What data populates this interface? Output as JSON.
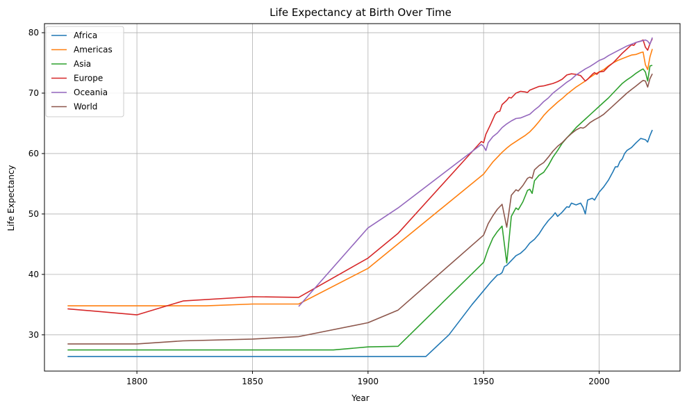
{
  "chart_data": {
    "type": "line",
    "title": "Life Expectancy at Birth Over Time",
    "xlabel": "Year",
    "ylabel": "Life Expectancy",
    "xlim": [
      1760,
      2035
    ],
    "ylim": [
      24,
      81.5
    ],
    "xticks": [
      1800,
      1850,
      1900,
      1950,
      2000
    ],
    "yticks": [
      30,
      40,
      50,
      60,
      70,
      80
    ],
    "grid": true,
    "legend_position": "top-left",
    "series": [
      {
        "name": "Africa",
        "color": "#1f77b4",
        "points": [
          [
            1770,
            26.4
          ],
          [
            1800,
            26.4
          ],
          [
            1850,
            26.4
          ],
          [
            1900,
            26.4
          ],
          [
            1925,
            26.4
          ],
          [
            1935,
            30.0
          ],
          [
            1945,
            35.0
          ],
          [
            1950,
            37.3
          ],
          [
            1953,
            38.7
          ],
          [
            1956,
            39.9
          ],
          [
            1957,
            40.0
          ],
          [
            1958,
            40.3
          ],
          [
            1959,
            41.3
          ],
          [
            1960,
            41.5
          ],
          [
            1962,
            42.3
          ],
          [
            1964,
            43.1
          ],
          [
            1966,
            43.5
          ],
          [
            1968,
            44.2
          ],
          [
            1970,
            45.2
          ],
          [
            1972,
            45.8
          ],
          [
            1974,
            46.7
          ],
          [
            1976,
            47.9
          ],
          [
            1978,
            48.9
          ],
          [
            1980,
            49.7
          ],
          [
            1981,
            50.2
          ],
          [
            1982,
            49.6
          ],
          [
            1984,
            50.3
          ],
          [
            1986,
            51.2
          ],
          [
            1987,
            51.1
          ],
          [
            1988,
            51.8
          ],
          [
            1990,
            51.5
          ],
          [
            1992,
            51.8
          ],
          [
            1993,
            51.1
          ],
          [
            1994,
            50.0
          ],
          [
            1995,
            52.3
          ],
          [
            1997,
            52.6
          ],
          [
            1998,
            52.3
          ],
          [
            2000,
            53.6
          ],
          [
            2002,
            54.5
          ],
          [
            2004,
            55.6
          ],
          [
            2006,
            57.0
          ],
          [
            2007,
            57.8
          ],
          [
            2008,
            57.8
          ],
          [
            2009,
            58.7
          ],
          [
            2010,
            59.1
          ],
          [
            2011,
            60.0
          ],
          [
            2012,
            60.5
          ],
          [
            2014,
            61.0
          ],
          [
            2016,
            61.8
          ],
          [
            2018,
            62.5
          ],
          [
            2019,
            62.4
          ],
          [
            2020,
            62.3
          ],
          [
            2021,
            61.9
          ],
          [
            2022,
            63.0
          ],
          [
            2023,
            63.9
          ]
        ]
      },
      {
        "name": "Americas",
        "color": "#ff7f0e",
        "points": [
          [
            1770,
            34.8
          ],
          [
            1800,
            34.8
          ],
          [
            1830,
            34.8
          ],
          [
            1850,
            35.1
          ],
          [
            1870,
            35.1
          ],
          [
            1900,
            41.0
          ],
          [
            1950,
            56.6
          ],
          [
            1952,
            57.6
          ],
          [
            1954,
            58.6
          ],
          [
            1956,
            59.4
          ],
          [
            1958,
            60.2
          ],
          [
            1960,
            60.9
          ],
          [
            1962,
            61.5
          ],
          [
            1964,
            62.0
          ],
          [
            1966,
            62.5
          ],
          [
            1968,
            63.0
          ],
          [
            1970,
            63.6
          ],
          [
            1972,
            64.4
          ],
          [
            1974,
            65.3
          ],
          [
            1976,
            66.3
          ],
          [
            1978,
            67.1
          ],
          [
            1980,
            67.8
          ],
          [
            1982,
            68.5
          ],
          [
            1984,
            69.1
          ],
          [
            1986,
            69.8
          ],
          [
            1988,
            70.4
          ],
          [
            1990,
            71.0
          ],
          [
            1992,
            71.5
          ],
          [
            1994,
            72.0
          ],
          [
            1996,
            72.6
          ],
          [
            1998,
            73.1
          ],
          [
            2000,
            73.5
          ],
          [
            2002,
            73.9
          ],
          [
            2004,
            74.5
          ],
          [
            2006,
            75.0
          ],
          [
            2008,
            75.4
          ],
          [
            2010,
            75.7
          ],
          [
            2012,
            76.0
          ],
          [
            2014,
            76.3
          ],
          [
            2016,
            76.4
          ],
          [
            2018,
            76.7
          ],
          [
            2019,
            76.8
          ],
          [
            2020,
            74.7
          ],
          [
            2021,
            73.9
          ],
          [
            2022,
            76.0
          ],
          [
            2023,
            77.3
          ]
        ]
      },
      {
        "name": "Asia",
        "color": "#2ca02c",
        "points": [
          [
            1770,
            27.5
          ],
          [
            1800,
            27.5
          ],
          [
            1850,
            27.5
          ],
          [
            1885,
            27.5
          ],
          [
            1900,
            28.0
          ],
          [
            1913,
            28.1
          ],
          [
            1950,
            42.0
          ],
          [
            1952,
            44.2
          ],
          [
            1954,
            46.0
          ],
          [
            1956,
            47.1
          ],
          [
            1958,
            48.0
          ],
          [
            1960,
            41.9
          ],
          [
            1962,
            49.6
          ],
          [
            1964,
            51.0
          ],
          [
            1965,
            50.7
          ],
          [
            1967,
            52.0
          ],
          [
            1969,
            53.9
          ],
          [
            1970,
            54.1
          ],
          [
            1971,
            53.4
          ],
          [
            1972,
            55.5
          ],
          [
            1974,
            56.4
          ],
          [
            1976,
            56.9
          ],
          [
            1978,
            58.0
          ],
          [
            1980,
            59.4
          ],
          [
            1982,
            60.5
          ],
          [
            1984,
            61.7
          ],
          [
            1986,
            62.6
          ],
          [
            1988,
            63.4
          ],
          [
            1990,
            64.3
          ],
          [
            1992,
            65.0
          ],
          [
            1994,
            65.7
          ],
          [
            1996,
            66.4
          ],
          [
            1998,
            67.1
          ],
          [
            2000,
            67.8
          ],
          [
            2002,
            68.5
          ],
          [
            2004,
            69.2
          ],
          [
            2006,
            70.0
          ],
          [
            2008,
            70.8
          ],
          [
            2010,
            71.6
          ],
          [
            2012,
            72.2
          ],
          [
            2014,
            72.7
          ],
          [
            2016,
            73.3
          ],
          [
            2018,
            73.8
          ],
          [
            2019,
            74.0
          ],
          [
            2020,
            73.5
          ],
          [
            2021,
            72.0
          ],
          [
            2022,
            74.5
          ],
          [
            2023,
            74.6
          ]
        ]
      },
      {
        "name": "Europe",
        "color": "#d62728",
        "points": [
          [
            1770,
            34.3
          ],
          [
            1800,
            33.3
          ],
          [
            1820,
            35.6
          ],
          [
            1850,
            36.3
          ],
          [
            1870,
            36.2
          ],
          [
            1900,
            42.7
          ],
          [
            1913,
            46.8
          ],
          [
            1949,
            62.0
          ],
          [
            1950,
            61.8
          ],
          [
            1951,
            63.2
          ],
          [
            1953,
            64.8
          ],
          [
            1955,
            66.5
          ],
          [
            1956,
            66.9
          ],
          [
            1957,
            67.0
          ],
          [
            1958,
            68.1
          ],
          [
            1960,
            68.8
          ],
          [
            1961,
            69.3
          ],
          [
            1962,
            69.2
          ],
          [
            1964,
            70.0
          ],
          [
            1966,
            70.3
          ],
          [
            1968,
            70.2
          ],
          [
            1969,
            70.1
          ],
          [
            1970,
            70.5
          ],
          [
            1972,
            70.8
          ],
          [
            1974,
            71.1
          ],
          [
            1976,
            71.2
          ],
          [
            1978,
            71.4
          ],
          [
            1980,
            71.6
          ],
          [
            1982,
            71.9
          ],
          [
            1984,
            72.3
          ],
          [
            1986,
            73.0
          ],
          [
            1988,
            73.2
          ],
          [
            1990,
            73.1
          ],
          [
            1992,
            72.9
          ],
          [
            1994,
            72.0
          ],
          [
            1995,
            72.3
          ],
          [
            1997,
            73.1
          ],
          [
            1998,
            73.4
          ],
          [
            1999,
            73.1
          ],
          [
            2000,
            73.5
          ],
          [
            2002,
            73.6
          ],
          [
            2004,
            74.4
          ],
          [
            2006,
            75.0
          ],
          [
            2008,
            75.8
          ],
          [
            2010,
            76.6
          ],
          [
            2012,
            77.3
          ],
          [
            2014,
            78.0
          ],
          [
            2015,
            77.9
          ],
          [
            2016,
            78.4
          ],
          [
            2018,
            78.6
          ],
          [
            2019,
            78.8
          ],
          [
            2020,
            77.6
          ],
          [
            2021,
            77.1
          ],
          [
            2022,
            78.2
          ],
          [
            2023,
            79.0
          ]
        ]
      },
      {
        "name": "Oceania",
        "color": "#9467bd",
        "points": [
          [
            1870,
            34.7
          ],
          [
            1900,
            47.7
          ],
          [
            1913,
            51.0
          ],
          [
            1949,
            61.5
          ],
          [
            1950,
            61.2
          ],
          [
            1951,
            60.5
          ],
          [
            1952,
            61.8
          ],
          [
            1954,
            62.8
          ],
          [
            1956,
            63.4
          ],
          [
            1958,
            64.3
          ],
          [
            1960,
            64.9
          ],
          [
            1962,
            65.4
          ],
          [
            1964,
            65.8
          ],
          [
            1966,
            65.9
          ],
          [
            1968,
            66.2
          ],
          [
            1970,
            66.5
          ],
          [
            1972,
            67.2
          ],
          [
            1974,
            67.8
          ],
          [
            1976,
            68.6
          ],
          [
            1978,
            69.2
          ],
          [
            1980,
            70.0
          ],
          [
            1982,
            70.6
          ],
          [
            1984,
            71.2
          ],
          [
            1986,
            71.8
          ],
          [
            1988,
            72.3
          ],
          [
            1990,
            73.0
          ],
          [
            1992,
            73.5
          ],
          [
            1994,
            74.0
          ],
          [
            1996,
            74.4
          ],
          [
            1998,
            74.9
          ],
          [
            2000,
            75.4
          ],
          [
            2002,
            75.7
          ],
          [
            2004,
            76.2
          ],
          [
            2006,
            76.6
          ],
          [
            2008,
            77.0
          ],
          [
            2010,
            77.4
          ],
          [
            2012,
            77.8
          ],
          [
            2014,
            78.1
          ],
          [
            2016,
            78.4
          ],
          [
            2018,
            78.6
          ],
          [
            2019,
            78.7
          ],
          [
            2020,
            78.8
          ],
          [
            2021,
            78.6
          ],
          [
            2022,
            78.1
          ],
          [
            2023,
            79.2
          ]
        ]
      },
      {
        "name": "World",
        "color": "#8c564b",
        "points": [
          [
            1770,
            28.5
          ],
          [
            1800,
            28.5
          ],
          [
            1820,
            29.0
          ],
          [
            1850,
            29.3
          ],
          [
            1870,
            29.7
          ],
          [
            1900,
            32.0
          ],
          [
            1913,
            34.1
          ],
          [
            1950,
            46.5
          ],
          [
            1952,
            48.4
          ],
          [
            1954,
            49.7
          ],
          [
            1956,
            50.8
          ],
          [
            1958,
            51.6
          ],
          [
            1960,
            47.8
          ],
          [
            1961,
            50.4
          ],
          [
            1962,
            53.1
          ],
          [
            1964,
            54.0
          ],
          [
            1965,
            53.8
          ],
          [
            1967,
            54.7
          ],
          [
            1969,
            55.9
          ],
          [
            1970,
            56.1
          ],
          [
            1971,
            55.9
          ],
          [
            1972,
            57.3
          ],
          [
            1974,
            58.0
          ],
          [
            1976,
            58.5
          ],
          [
            1978,
            59.4
          ],
          [
            1980,
            60.4
          ],
          [
            1982,
            61.2
          ],
          [
            1984,
            61.8
          ],
          [
            1986,
            62.6
          ],
          [
            1988,
            63.3
          ],
          [
            1990,
            63.9
          ],
          [
            1992,
            64.3
          ],
          [
            1993,
            64.2
          ],
          [
            1994,
            64.4
          ],
          [
            1996,
            65.1
          ],
          [
            1998,
            65.6
          ],
          [
            2000,
            66.0
          ],
          [
            2002,
            66.5
          ],
          [
            2004,
            67.2
          ],
          [
            2006,
            67.9
          ],
          [
            2008,
            68.6
          ],
          [
            2010,
            69.3
          ],
          [
            2012,
            70.0
          ],
          [
            2014,
            70.6
          ],
          [
            2016,
            71.2
          ],
          [
            2018,
            71.8
          ],
          [
            2019,
            72.1
          ],
          [
            2020,
            72.0
          ],
          [
            2021,
            71.0
          ],
          [
            2022,
            72.4
          ],
          [
            2023,
            73.2
          ]
        ]
      }
    ]
  }
}
